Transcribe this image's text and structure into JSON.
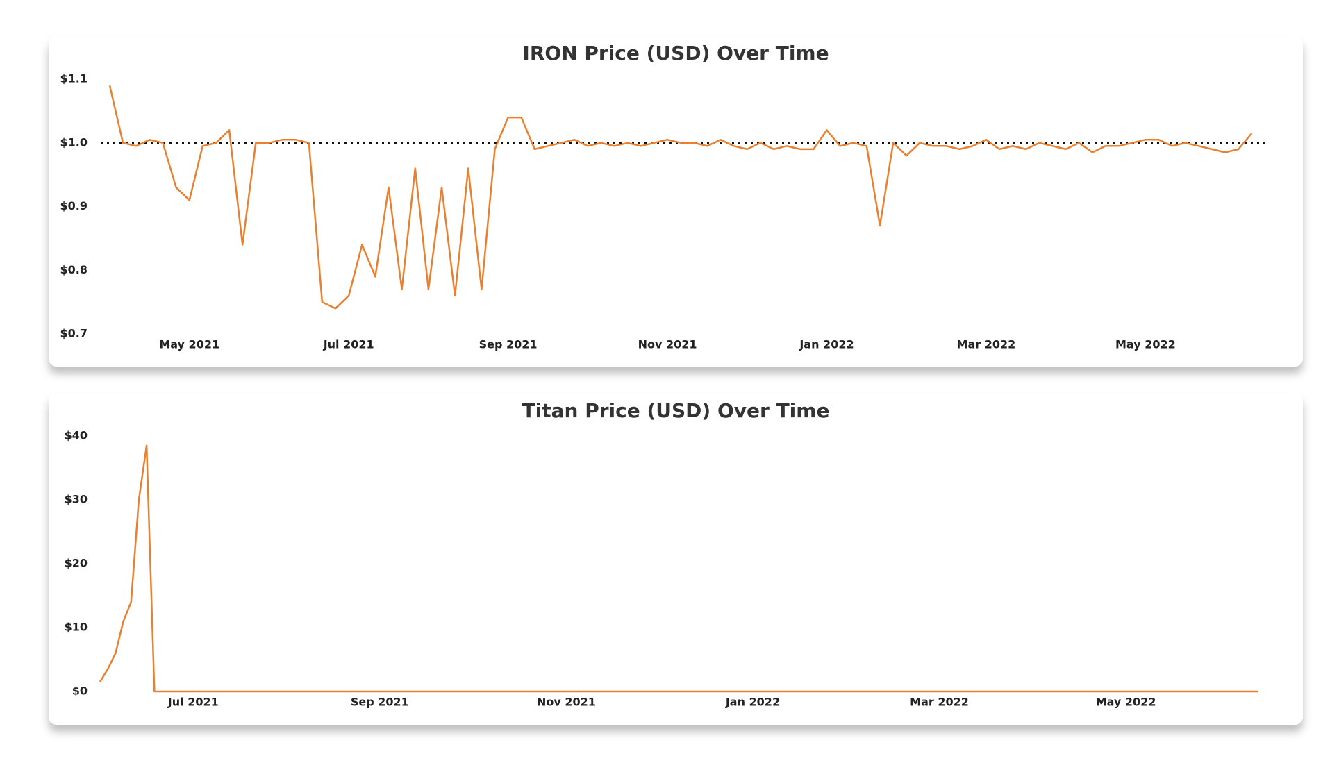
{
  "chart_data": [
    {
      "type": "line",
      "title": "IRON Price (USD) Over Time",
      "categories": [
        null,
        null,
        null,
        null,
        null,
        null,
        "May 2021",
        null,
        null,
        null,
        null,
        null,
        null,
        null,
        null,
        null,
        null,
        null,
        "Jul 2021",
        null,
        null,
        null,
        null,
        null,
        null,
        null,
        null,
        null,
        null,
        null,
        "Sep 2021",
        null,
        null,
        null,
        null,
        null,
        null,
        null,
        null,
        null,
        null,
        null,
        "Nov 2021",
        null,
        null,
        null,
        null,
        null,
        null,
        null,
        null,
        null,
        null,
        null,
        "Jan 2022",
        null,
        null,
        null,
        null,
        null,
        null,
        null,
        null,
        null,
        null,
        null,
        "Mar 2022",
        null,
        null,
        null,
        null,
        null,
        null,
        null,
        null,
        null,
        null,
        null,
        "May 2022",
        null,
        null,
        null,
        null,
        null,
        null,
        null,
        null
      ],
      "values": [
        1.09,
        1.0,
        0.995,
        1.005,
        1.0,
        0.93,
        0.91,
        0.995,
        1.0,
        1.02,
        0.84,
        1.0,
        1.0,
        1.005,
        1.005,
        1.0,
        0.75,
        0.74,
        0.76,
        0.84,
        0.79,
        0.93,
        0.77,
        0.96,
        0.77,
        0.93,
        0.76,
        0.96,
        0.77,
        0.99,
        1.04,
        1.04,
        0.99,
        0.995,
        1.0,
        1.005,
        0.995,
        1.0,
        0.995,
        1.0,
        0.995,
        1.0,
        1.005,
        1.0,
        1.0,
        0.995,
        1.005,
        0.995,
        0.99,
        1.0,
        0.99,
        0.995,
        0.99,
        0.99,
        1.02,
        0.995,
        1.0,
        0.995,
        0.87,
        1.0,
        0.98,
        1.0,
        0.995,
        0.995,
        0.99,
        0.995,
        1.005,
        0.99,
        0.995,
        0.99,
        1.0,
        0.995,
        0.99,
        1.0,
        0.985,
        0.995,
        0.995,
        1.0,
        1.005,
        1.005,
        0.995,
        1.0,
        0.995,
        0.99,
        0.985,
        0.99,
        1.015
      ],
      "color": "#e8802f",
      "ylim": [
        0.7,
        1.1
      ],
      "yticks": [
        {
          "value": 0.7,
          "label": "$0.7"
        },
        {
          "value": 0.8,
          "label": "$0.8"
        },
        {
          "value": 0.9,
          "label": "$0.9"
        },
        {
          "value": 1.0,
          "label": "$1.0"
        },
        {
          "value": 1.1,
          "label": "$1.1"
        }
      ],
      "reference_line": 1.0
    },
    {
      "type": "line",
      "title": "Titan Price (USD) Over Time",
      "categories": [
        null,
        null,
        null,
        null,
        null,
        null,
        null,
        null,
        null,
        null,
        null,
        null,
        "Jul 2021",
        null,
        null,
        null,
        null,
        null,
        null,
        null,
        null,
        null,
        null,
        null,
        null,
        null,
        null,
        null,
        null,
        null,
        null,
        null,
        null,
        null,
        null,
        null,
        "Sep 2021",
        null,
        null,
        null,
        null,
        null,
        null,
        null,
        null,
        null,
        null,
        null,
        null,
        null,
        null,
        null,
        null,
        null,
        null,
        null,
        null,
        null,
        null,
        null,
        "Nov 2021",
        null,
        null,
        null,
        null,
        null,
        null,
        null,
        null,
        null,
        null,
        null,
        null,
        null,
        null,
        null,
        null,
        null,
        null,
        null,
        null,
        null,
        null,
        null,
        "Jan 2022",
        null,
        null,
        null,
        null,
        null,
        null,
        null,
        null,
        null,
        null,
        null,
        null,
        null,
        null,
        null,
        null,
        null,
        null,
        null,
        null,
        null,
        null,
        null,
        "Mar 2022",
        null,
        null,
        null,
        null,
        null,
        null,
        null,
        null,
        null,
        null,
        null,
        null,
        null,
        null,
        null,
        null,
        null,
        null,
        null,
        null,
        null,
        null,
        null,
        "May 2022",
        null,
        null,
        null,
        null,
        null,
        null,
        null,
        null,
        null,
        null,
        null,
        null,
        null,
        null,
        null,
        null,
        null
      ],
      "values": [
        1.5,
        3.5,
        6,
        11,
        14,
        30,
        38.5,
        0,
        0,
        0,
        0,
        0,
        0,
        0,
        0,
        0,
        0,
        0,
        0,
        0,
        0,
        0,
        0,
        0,
        0,
        0,
        0,
        0,
        0,
        0,
        0,
        0,
        0,
        0,
        0,
        0,
        0,
        0,
        0,
        0,
        0,
        0,
        0,
        0,
        0,
        0,
        0,
        0,
        0,
        0,
        0,
        0,
        0,
        0,
        0,
        0,
        0,
        0,
        0,
        0,
        0,
        0,
        0,
        0,
        0,
        0,
        0,
        0,
        0,
        0,
        0,
        0,
        0,
        0,
        0,
        0,
        0,
        0,
        0,
        0,
        0,
        0,
        0,
        0,
        0,
        0,
        0,
        0,
        0,
        0,
        0,
        0,
        0,
        0,
        0,
        0,
        0,
        0,
        0,
        0,
        0,
        0,
        0,
        0,
        0,
        0,
        0,
        0,
        0,
        0,
        0,
        0,
        0,
        0,
        0,
        0,
        0,
        0,
        0,
        0,
        0,
        0,
        0,
        0,
        0,
        0,
        0,
        0,
        0,
        0,
        0,
        0,
        0,
        0,
        0,
        0,
        0,
        0,
        0,
        0,
        0,
        0,
        0,
        0,
        0,
        0,
        0,
        0,
        0,
        0
      ],
      "color": "#e8802f",
      "ylim": [
        0,
        40
      ],
      "yticks": [
        {
          "value": 0,
          "label": "$0"
        },
        {
          "value": 10,
          "label": "$10"
        },
        {
          "value": 20,
          "label": "$20"
        },
        {
          "value": 30,
          "label": "$30"
        },
        {
          "value": 40,
          "label": "$40"
        }
      ]
    }
  ]
}
